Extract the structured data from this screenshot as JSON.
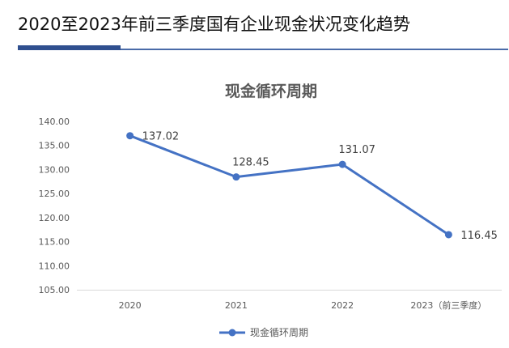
{
  "page": {
    "title": "2020至2023年前三季度国有企业现金状况变化趋势"
  },
  "colors": {
    "series": "#4472c4",
    "rule": "#2f4f8f",
    "grid": "#d9d9d9",
    "text": "#595959"
  },
  "chart_data": {
    "type": "line",
    "title": "现金循环周期",
    "categories": [
      "2020",
      "2021",
      "2022",
      "2023（前三季度）"
    ],
    "series": [
      {
        "name": "现金循环周期",
        "values": [
          137.02,
          128.45,
          131.07,
          116.45
        ]
      }
    ],
    "data_labels": [
      "137.02",
      "128.45",
      "131.07",
      "116.45"
    ],
    "ylim": [
      105,
      140
    ],
    "ytick_step": 5,
    "ytick_labels": [
      "105.00",
      "110.00",
      "115.00",
      "120.00",
      "125.00",
      "130.00",
      "135.00",
      "140.00"
    ],
    "xlabel": "",
    "ylabel": "",
    "grid": false,
    "legend": "bottom"
  }
}
